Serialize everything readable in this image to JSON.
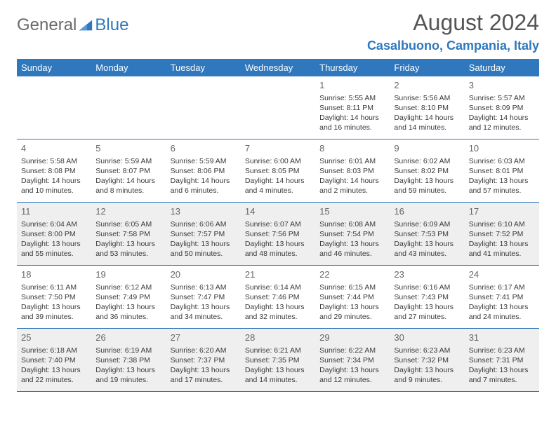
{
  "logo": {
    "general": "General",
    "blue": "Blue"
  },
  "title": "August 2024",
  "location": "Casalbuono, Campania, Italy",
  "day_headers": [
    "Sunday",
    "Monday",
    "Tuesday",
    "Wednesday",
    "Thursday",
    "Friday",
    "Saturday"
  ],
  "colors": {
    "brand_blue": "#2f78bd",
    "alt_row_bg": "#efefef",
    "text": "#333333",
    "title_gray": "#555555"
  },
  "weeks": [
    {
      "alt": false,
      "days": [
        null,
        null,
        null,
        null,
        {
          "n": "1",
          "sunrise": "5:55 AM",
          "sunset": "8:11 PM",
          "daylight": "14 hours and 16 minutes."
        },
        {
          "n": "2",
          "sunrise": "5:56 AM",
          "sunset": "8:10 PM",
          "daylight": "14 hours and 14 minutes."
        },
        {
          "n": "3",
          "sunrise": "5:57 AM",
          "sunset": "8:09 PM",
          "daylight": "14 hours and 12 minutes."
        }
      ]
    },
    {
      "alt": false,
      "days": [
        {
          "n": "4",
          "sunrise": "5:58 AM",
          "sunset": "8:08 PM",
          "daylight": "14 hours and 10 minutes."
        },
        {
          "n": "5",
          "sunrise": "5:59 AM",
          "sunset": "8:07 PM",
          "daylight": "14 hours and 8 minutes."
        },
        {
          "n": "6",
          "sunrise": "5:59 AM",
          "sunset": "8:06 PM",
          "daylight": "14 hours and 6 minutes."
        },
        {
          "n": "7",
          "sunrise": "6:00 AM",
          "sunset": "8:05 PM",
          "daylight": "14 hours and 4 minutes."
        },
        {
          "n": "8",
          "sunrise": "6:01 AM",
          "sunset": "8:03 PM",
          "daylight": "14 hours and 2 minutes."
        },
        {
          "n": "9",
          "sunrise": "6:02 AM",
          "sunset": "8:02 PM",
          "daylight": "13 hours and 59 minutes."
        },
        {
          "n": "10",
          "sunrise": "6:03 AM",
          "sunset": "8:01 PM",
          "daylight": "13 hours and 57 minutes."
        }
      ]
    },
    {
      "alt": true,
      "days": [
        {
          "n": "11",
          "sunrise": "6:04 AM",
          "sunset": "8:00 PM",
          "daylight": "13 hours and 55 minutes."
        },
        {
          "n": "12",
          "sunrise": "6:05 AM",
          "sunset": "7:58 PM",
          "daylight": "13 hours and 53 minutes."
        },
        {
          "n": "13",
          "sunrise": "6:06 AM",
          "sunset": "7:57 PM",
          "daylight": "13 hours and 50 minutes."
        },
        {
          "n": "14",
          "sunrise": "6:07 AM",
          "sunset": "7:56 PM",
          "daylight": "13 hours and 48 minutes."
        },
        {
          "n": "15",
          "sunrise": "6:08 AM",
          "sunset": "7:54 PM",
          "daylight": "13 hours and 46 minutes."
        },
        {
          "n": "16",
          "sunrise": "6:09 AM",
          "sunset": "7:53 PM",
          "daylight": "13 hours and 43 minutes."
        },
        {
          "n": "17",
          "sunrise": "6:10 AM",
          "sunset": "7:52 PM",
          "daylight": "13 hours and 41 minutes."
        }
      ]
    },
    {
      "alt": false,
      "days": [
        {
          "n": "18",
          "sunrise": "6:11 AM",
          "sunset": "7:50 PM",
          "daylight": "13 hours and 39 minutes."
        },
        {
          "n": "19",
          "sunrise": "6:12 AM",
          "sunset": "7:49 PM",
          "daylight": "13 hours and 36 minutes."
        },
        {
          "n": "20",
          "sunrise": "6:13 AM",
          "sunset": "7:47 PM",
          "daylight": "13 hours and 34 minutes."
        },
        {
          "n": "21",
          "sunrise": "6:14 AM",
          "sunset": "7:46 PM",
          "daylight": "13 hours and 32 minutes."
        },
        {
          "n": "22",
          "sunrise": "6:15 AM",
          "sunset": "7:44 PM",
          "daylight": "13 hours and 29 minutes."
        },
        {
          "n": "23",
          "sunrise": "6:16 AM",
          "sunset": "7:43 PM",
          "daylight": "13 hours and 27 minutes."
        },
        {
          "n": "24",
          "sunrise": "6:17 AM",
          "sunset": "7:41 PM",
          "daylight": "13 hours and 24 minutes."
        }
      ]
    },
    {
      "alt": true,
      "days": [
        {
          "n": "25",
          "sunrise": "6:18 AM",
          "sunset": "7:40 PM",
          "daylight": "13 hours and 22 minutes."
        },
        {
          "n": "26",
          "sunrise": "6:19 AM",
          "sunset": "7:38 PM",
          "daylight": "13 hours and 19 minutes."
        },
        {
          "n": "27",
          "sunrise": "6:20 AM",
          "sunset": "7:37 PM",
          "daylight": "13 hours and 17 minutes."
        },
        {
          "n": "28",
          "sunrise": "6:21 AM",
          "sunset": "7:35 PM",
          "daylight": "13 hours and 14 minutes."
        },
        {
          "n": "29",
          "sunrise": "6:22 AM",
          "sunset": "7:34 PM",
          "daylight": "13 hours and 12 minutes."
        },
        {
          "n": "30",
          "sunrise": "6:23 AM",
          "sunset": "7:32 PM",
          "daylight": "13 hours and 9 minutes."
        },
        {
          "n": "31",
          "sunrise": "6:23 AM",
          "sunset": "7:31 PM",
          "daylight": "13 hours and 7 minutes."
        }
      ]
    }
  ],
  "labels": {
    "sunrise": "Sunrise: ",
    "sunset": "Sunset: ",
    "daylight": "Daylight: "
  }
}
